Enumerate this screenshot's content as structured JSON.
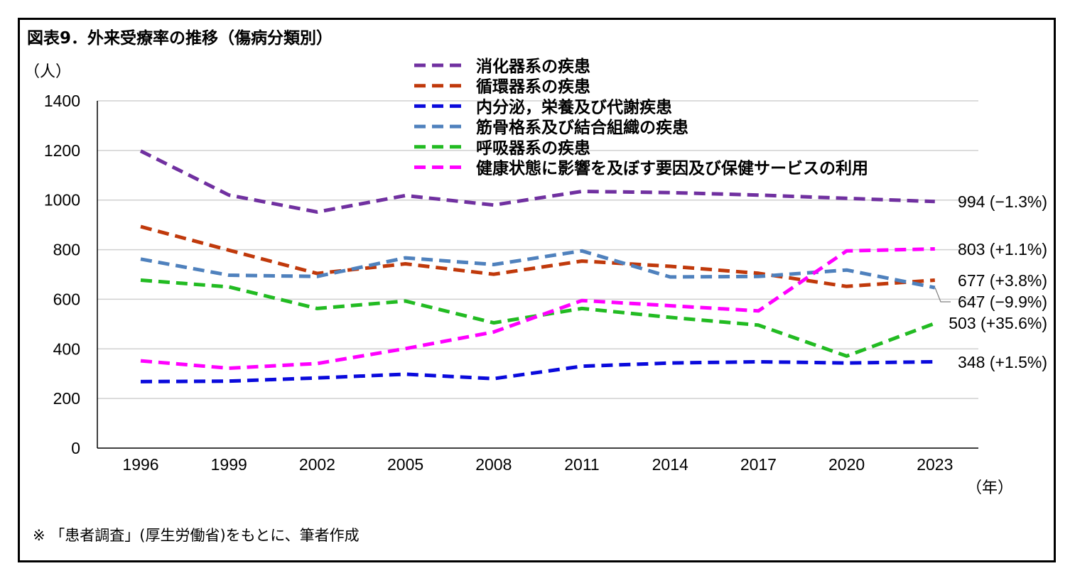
{
  "title": "図表9．外来受療率の推移（傷病分類別）",
  "note": "※ 「患者調査」(厚生労働省)をもとに、筆者作成",
  "chart_data": {
    "type": "line",
    "title": "図表9．外来受療率の推移（傷病分類別）",
    "ylabel": "（人）",
    "xlabel": "（年）",
    "ylim": [
      0,
      1400
    ],
    "yticks": [
      0,
      200,
      400,
      600,
      800,
      1000,
      1200,
      1400
    ],
    "grid": true,
    "line_style": "dashed",
    "categories": [
      "1996",
      "1999",
      "2002",
      "2005",
      "2008",
      "2011",
      "2014",
      "2017",
      "2020",
      "2023"
    ],
    "series": [
      {
        "name": "消化器系の疾患",
        "color": "#7030a0",
        "values": [
          1198,
          1020,
          952,
          1018,
          980,
          1035,
          1030,
          1020,
          1007,
          994
        ],
        "end_label": "994 (−1.3%)"
      },
      {
        "name": "循環器系の疾患",
        "color": "#c0390b",
        "values": [
          893,
          798,
          704,
          743,
          701,
          754,
          733,
          705,
          652,
          677
        ],
        "end_label": "677 (+3.8%)"
      },
      {
        "name": "内分泌，栄養及び代謝疾患",
        "color": "#0a0adc",
        "values": [
          268,
          270,
          283,
          298,
          280,
          330,
          343,
          348,
          343,
          348
        ],
        "end_label": "348 (+1.5%)"
      },
      {
        "name": "筋骨格系及び結合組織の疾患",
        "color": "#4f81bd",
        "values": [
          762,
          697,
          692,
          767,
          740,
          795,
          690,
          692,
          718,
          647
        ],
        "end_label": "647 (−9.9%)"
      },
      {
        "name": "呼吸器系の疾患",
        "color": "#22bb22",
        "values": [
          677,
          650,
          563,
          593,
          505,
          563,
          527,
          496,
          371,
          503
        ],
        "end_label": "503 (+35.6%)"
      },
      {
        "name": "健康状態に影響を及ぼす要因及び保健サービスの利用",
        "color": "#ff00ff",
        "values": [
          352,
          322,
          341,
          401,
          468,
          595,
          574,
          553,
          795,
          803
        ],
        "end_label": "803 (+1.1%)"
      }
    ]
  }
}
